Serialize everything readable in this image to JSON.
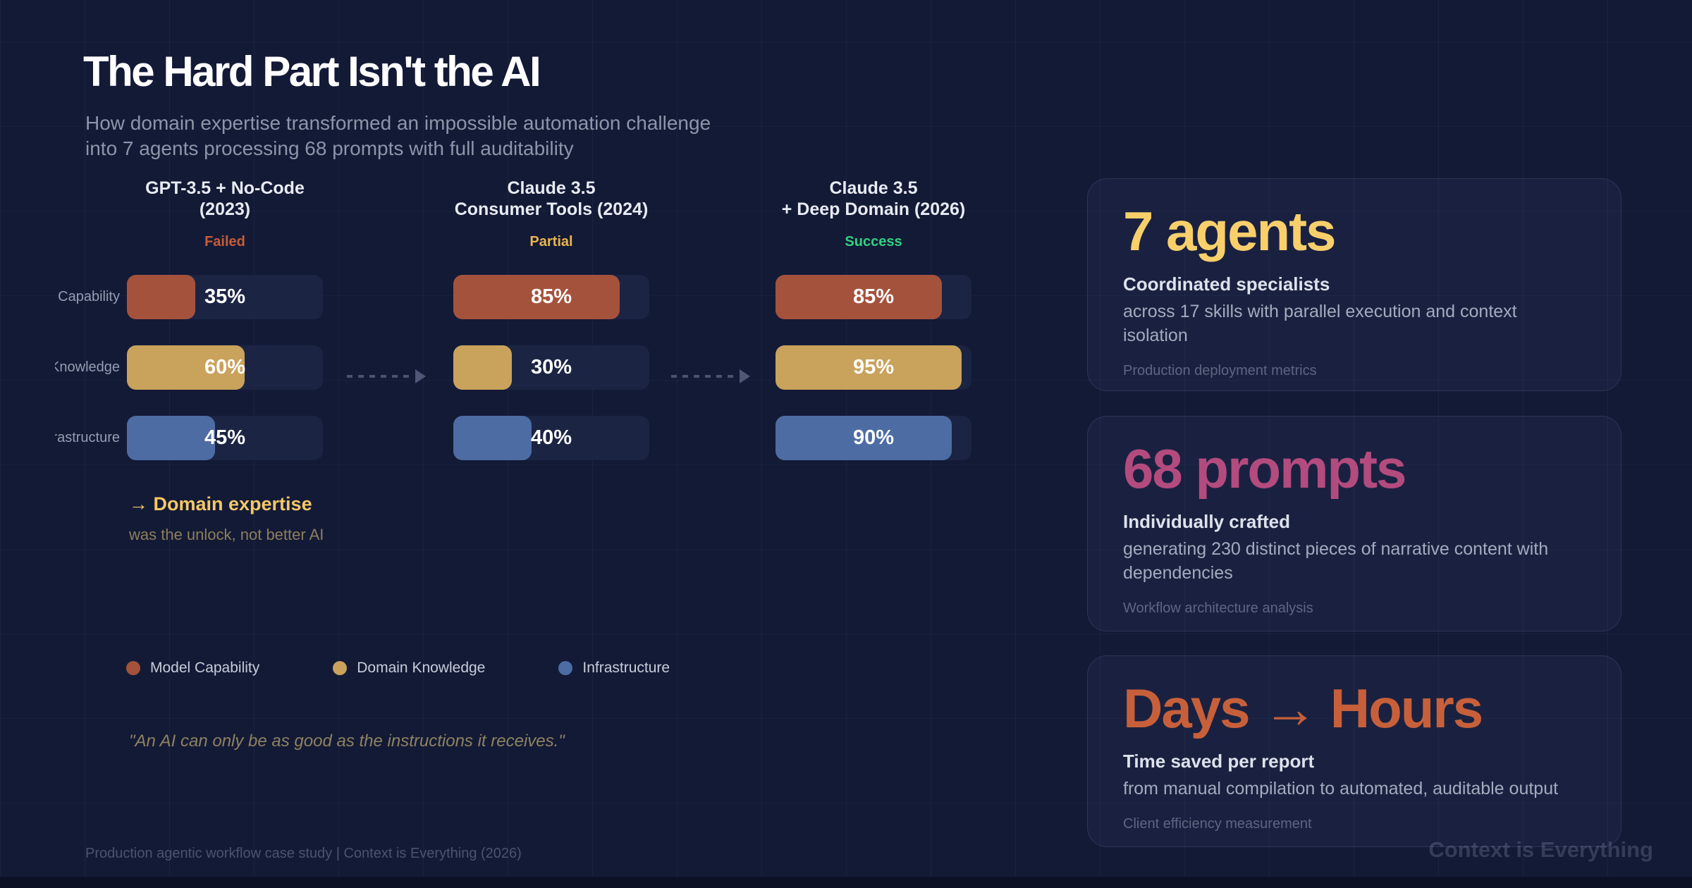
{
  "page": {
    "bg_color": "#131a36",
    "title": "The Hard Part Isn't the AI",
    "subtitle": "How domain expertise transformed an impossible automation challenge\ninto 7 agents processing 68 prompts with full auditability",
    "footer": "Production agentic workflow case study | Context is Everything (2026)",
    "watermark": "Context is Everything"
  },
  "chart_data": {
    "type": "bar",
    "unit": "%",
    "axis_max": 100,
    "categories": [
      "GPT-3.5 + No-Code (2023)",
      "Claude 3.5 Consumer Tools (2024)",
      "Claude 3.5 + Deep Domain (2026)"
    ],
    "columns": [
      {
        "title_line1": "GPT-3.5 + No-Code",
        "title_line2": "(2023)",
        "status": "Failed",
        "status_color": "#c65d39"
      },
      {
        "title_line1": "Claude 3.5",
        "title_line2": "Consumer Tools (2024)",
        "status": "Partial",
        "status_color": "#eab54e"
      },
      {
        "title_line1": "Claude 3.5",
        "title_line2": "+ Deep Domain (2026)",
        "status": "Success",
        "status_color": "#32d27f"
      }
    ],
    "series": [
      {
        "name": "Model Capability",
        "color": "#a5523c",
        "values": [
          35,
          85,
          85
        ]
      },
      {
        "name": "Domain Knowledge",
        "color": "#c9a25c",
        "values": [
          60,
          30,
          95
        ]
      },
      {
        "name": "Infrastructure",
        "color": "#4d6ca4",
        "values": [
          45,
          40,
          90
        ]
      }
    ],
    "legend": [
      {
        "label": "Model Capability",
        "color": "#a5523c"
      },
      {
        "label": "Domain Knowledge",
        "color": "#c9a25c"
      },
      {
        "label": "Infrastructure",
        "color": "#4d6ca4"
      }
    ],
    "annotation": {
      "headline": "→ Domain expertise",
      "subtext": "was the unlock, not better AI"
    }
  },
  "quote": {
    "text": "\"An AI can only be as good as the instructions it receives.\""
  },
  "stat_cards": [
    {
      "headline": "7 agents",
      "color": "#f8cf6b",
      "subhead": "Coordinated specialists",
      "body": "across 17 skills with parallel execution and context isolation",
      "footnote": "Production deployment metrics"
    },
    {
      "headline": "68 prompts",
      "color": "#b34b7e",
      "subhead": "Individually crafted",
      "body": "generating 230 distinct pieces of narrative content with dependencies",
      "footnote": "Workflow architecture analysis"
    },
    {
      "headline": "Days → Hours",
      "color": "#c7603a",
      "subhead": "Time saved per report",
      "body": "from manual compilation to automated, auditable output",
      "footnote": "Client efficiency measurement"
    }
  ]
}
